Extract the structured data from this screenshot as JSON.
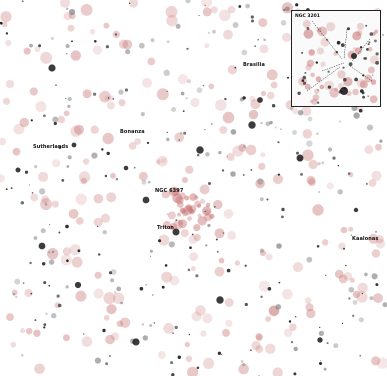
{
  "labels": {
    "l1": "NGC 3201",
    "l2": "Bonanza",
    "l3": "Sutherlands",
    "l4": "Brasilia",
    "l5": "NGC 6397",
    "l6": "Triton",
    "l7": "Kaalonas"
  },
  "inset": {
    "label": "NGC 3201"
  },
  "colors": {
    "red_stars": "#c97a7a",
    "black_stars": "#1a1a1a",
    "grey_stars": "#7a7a7a"
  }
}
